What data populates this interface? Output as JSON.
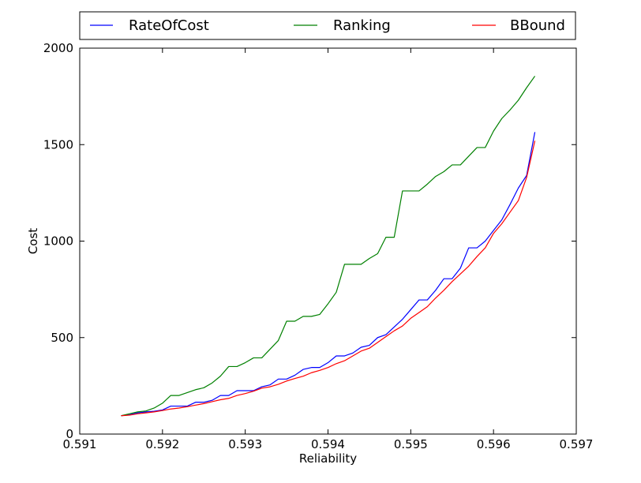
{
  "chart_data": {
    "type": "line",
    "title": "",
    "xlabel": "Reliability",
    "ylabel": "Cost",
    "xlim": [
      0.591,
      0.597
    ],
    "ylim": [
      0,
      2000
    ],
    "xticks": [
      "0.591",
      "0.592",
      "0.593",
      "0.594",
      "0.595",
      "0.596",
      "0.597"
    ],
    "xtick_values": [
      0.591,
      0.592,
      0.593,
      0.594,
      0.595,
      0.596,
      0.597
    ],
    "yticks": [
      "0",
      "500",
      "1000",
      "1500",
      "2000"
    ],
    "ytick_values": [
      0,
      500,
      1000,
      1500,
      2000
    ],
    "grid": false,
    "legend": {
      "placement": "top, above plot area, horizontal",
      "entries": [
        "RateOfCost",
        "Ranking",
        "BBound"
      ]
    },
    "series": [
      {
        "name": "RateOfCost",
        "color": "#0000ff",
        "x": [
          0.5915,
          0.5916,
          0.5917,
          0.5918,
          0.5919,
          0.592,
          0.5921,
          0.5922,
          0.5923,
          0.5924,
          0.5925,
          0.5926,
          0.5927,
          0.5928,
          0.5929,
          0.593,
          0.5931,
          0.5932,
          0.5933,
          0.5934,
          0.5935,
          0.5936,
          0.5937,
          0.5938,
          0.5939,
          0.594,
          0.5941,
          0.5942,
          0.5943,
          0.5944,
          0.5945,
          0.5946,
          0.5947,
          0.5948,
          0.5949,
          0.595,
          0.5951,
          0.5952,
          0.5953,
          0.5954,
          0.5955,
          0.5956,
          0.5957,
          0.5958,
          0.5959,
          0.596,
          0.5961,
          0.5962,
          0.5963,
          0.5964,
          0.5965
        ],
        "y": [
          95,
          100,
          110,
          115,
          118,
          125,
          145,
          145,
          145,
          165,
          165,
          175,
          200,
          200,
          225,
          225,
          225,
          245,
          255,
          285,
          285,
          305,
          335,
          345,
          345,
          370,
          405,
          405,
          420,
          450,
          460,
          500,
          515,
          555,
          595,
          645,
          695,
          695,
          745,
          805,
          805,
          860,
          965,
          965,
          1000,
          1055,
          1110,
          1190,
          1275,
          1340,
          1565
        ]
      },
      {
        "name": "Ranking",
        "color": "#008000",
        "x": [
          0.5915,
          0.5916,
          0.5917,
          0.5918,
          0.5919,
          0.592,
          0.5921,
          0.5922,
          0.5923,
          0.5924,
          0.5925,
          0.5926,
          0.5927,
          0.5928,
          0.5929,
          0.593,
          0.5931,
          0.5932,
          0.5933,
          0.5934,
          0.5935,
          0.5936,
          0.5937,
          0.5938,
          0.5939,
          0.594,
          0.5941,
          0.5942,
          0.5943,
          0.5944,
          0.5945,
          0.5946,
          0.5947,
          0.5948,
          0.5949,
          0.595,
          0.5951,
          0.5952,
          0.5953,
          0.5954,
          0.5955,
          0.5956,
          0.5957,
          0.5958,
          0.5959,
          0.596,
          0.5961,
          0.5962,
          0.5963,
          0.5964,
          0.5965
        ],
        "y": [
          95,
          105,
          115,
          120,
          135,
          160,
          200,
          200,
          215,
          230,
          240,
          265,
          300,
          350,
          350,
          370,
          395,
          395,
          440,
          485,
          585,
          585,
          610,
          610,
          620,
          675,
          735,
          880,
          880,
          880,
          910,
          935,
          1020,
          1020,
          1260,
          1260,
          1260,
          1295,
          1335,
          1360,
          1395,
          1395,
          1440,
          1485,
          1485,
          1570,
          1635,
          1680,
          1730,
          1795,
          1855
        ]
      },
      {
        "name": "BBound",
        "color": "#ff0000",
        "x": [
          0.5915,
          0.5916,
          0.5917,
          0.5918,
          0.5919,
          0.592,
          0.5921,
          0.5922,
          0.5923,
          0.5924,
          0.5925,
          0.5926,
          0.5927,
          0.5928,
          0.5929,
          0.593,
          0.5931,
          0.5932,
          0.5933,
          0.5934,
          0.5935,
          0.5936,
          0.5937,
          0.5938,
          0.5939,
          0.594,
          0.5941,
          0.5942,
          0.5943,
          0.5944,
          0.5945,
          0.5946,
          0.5947,
          0.5948,
          0.5949,
          0.595,
          0.5951,
          0.5952,
          0.5953,
          0.5954,
          0.5955,
          0.5956,
          0.5957,
          0.5958,
          0.5959,
          0.596,
          0.5961,
          0.5962,
          0.5963,
          0.5964,
          0.5965
        ],
        "y": [
          95,
          98,
          105,
          110,
          115,
          122,
          130,
          135,
          142,
          150,
          158,
          168,
          178,
          185,
          200,
          210,
          222,
          238,
          245,
          258,
          275,
          288,
          300,
          318,
          330,
          345,
          365,
          380,
          405,
          430,
          445,
          475,
          505,
          535,
          560,
          600,
          630,
          660,
          705,
          745,
          790,
          830,
          870,
          920,
          965,
          1040,
          1090,
          1150,
          1210,
          1330,
          1520
        ]
      }
    ]
  }
}
